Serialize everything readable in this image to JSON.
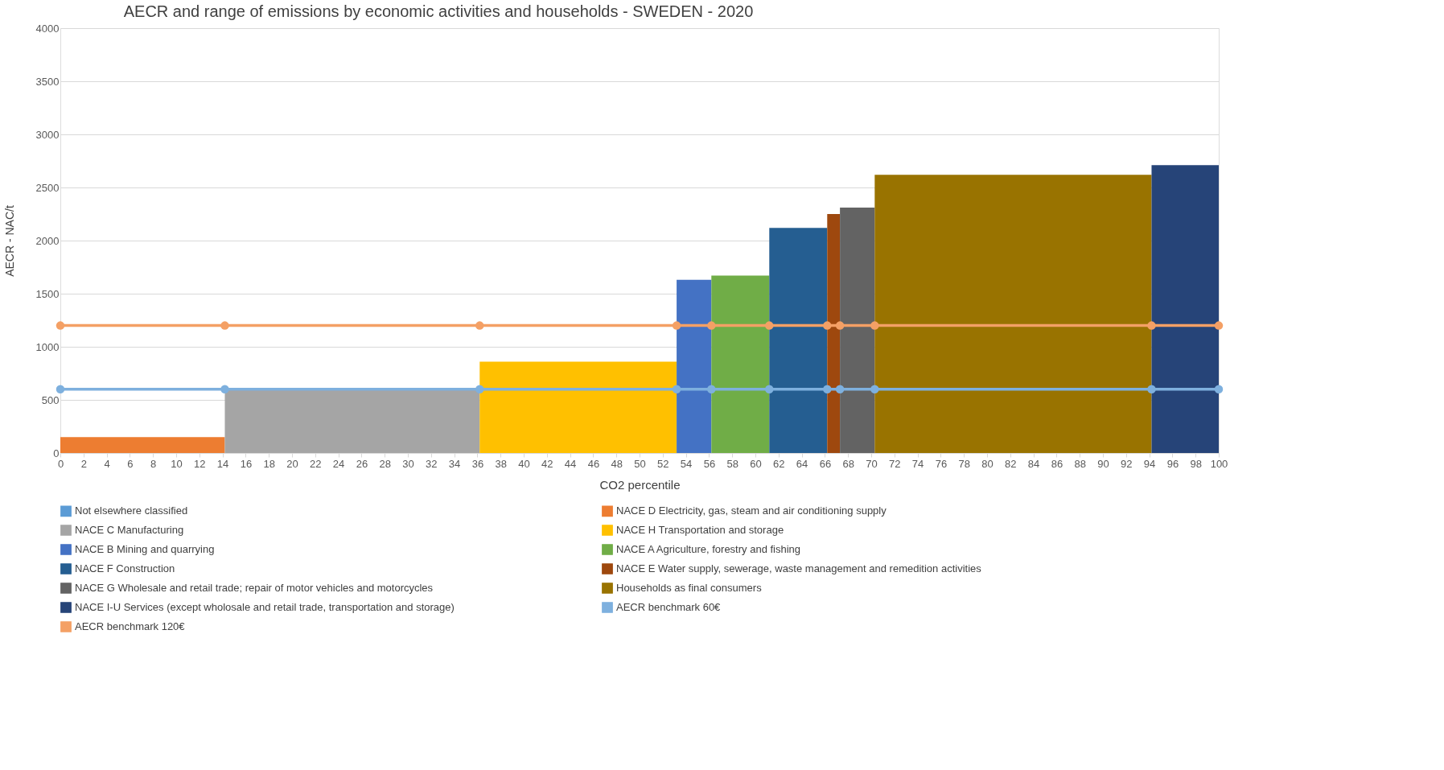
{
  "chart_data": {
    "type": "area",
    "title": "AECR and range of emissions by economic activities and households -   SWEDEN - 2020",
    "xlabel": "CO2 percentile",
    "ylabel": "AECR - NAC/t",
    "xlim": [
      0,
      100
    ],
    "xticks": [
      0,
      2,
      4,
      6,
      8,
      10,
      12,
      14,
      16,
      18,
      20,
      22,
      24,
      26,
      28,
      30,
      32,
      34,
      36,
      38,
      40,
      42,
      44,
      46,
      48,
      50,
      52,
      54,
      56,
      58,
      60,
      62,
      64,
      66,
      68,
      70,
      72,
      74,
      76,
      78,
      80,
      82,
      84,
      86,
      88,
      90,
      92,
      94,
      96,
      98,
      100
    ],
    "ylim": [
      0,
      4000
    ],
    "yticks": [
      0,
      500,
      1000,
      1500,
      2000,
      2500,
      3000,
      3500,
      4000
    ],
    "line_style": "solid",
    "grid": "y",
    "legend": "bottom",
    "series": [
      {
        "name": "Not elsewhere classified",
        "color": "#5b9bd5"
      },
      {
        "name": "NACE D Electricity, gas, steam and air conditioning supply",
        "color": "#ed7d31",
        "x": [
          0,
          14.2
        ],
        "values": [
          150,
          150
        ]
      },
      {
        "name": "NACE C Manufacturing",
        "color": "#a5a5a5",
        "x": [
          14.2,
          36.2
        ],
        "values": [
          590,
          590
        ]
      },
      {
        "name": "NACE H Transportation and storage",
        "color": "#ffc000",
        "x": [
          36.2,
          53.2
        ],
        "values": [
          860,
          860
        ]
      },
      {
        "name": "NACE B Mining and quarrying",
        "color": "#4472c4",
        "x": [
          53.2,
          56.2
        ],
        "values": [
          1630,
          1630
        ]
      },
      {
        "name": "NACE A Agriculture, forestry and fishing",
        "color": "#70ad47",
        "x": [
          56.2,
          61.2
        ],
        "values": [
          1670,
          1670
        ]
      },
      {
        "name": "NACE F Construction",
        "color": "#255e91",
        "x": [
          61.2,
          66.2
        ],
        "values": [
          2120,
          2120
        ]
      },
      {
        "name": "NACE E Water supply, sewerage, waste management and remedition activities",
        "color": "#9e480e",
        "x": [
          66.2,
          67.3
        ],
        "values": [
          2250,
          2250
        ]
      },
      {
        "name": "NACE G Wholesale and retail trade; repair of motor vehicles and motorcycles",
        "color": "#636363",
        "x": [
          67.3,
          70.3
        ],
        "values": [
          2310,
          2310
        ]
      },
      {
        "name": "Households as final consumers",
        "color": "#997300",
        "x": [
          70.3,
          94.2
        ],
        "values": [
          2620,
          2620
        ]
      },
      {
        "name": "NACE I-U Services (except wholosale and retail trade, transportation and storage)",
        "color": "#264478",
        "x": [
          94.2,
          100
        ],
        "values": [
          2710,
          2710
        ]
      },
      {
        "name": "AECR benchmark 60€",
        "color": "#7eb0de",
        "type": "line",
        "marker": "circle",
        "x": [
          0,
          14.2,
          36.2,
          53.2,
          56.2,
          61.2,
          66.2,
          67.3,
          70.3,
          94.2,
          100
        ],
        "values": [
          600,
          600,
          600,
          600,
          600,
          600,
          600,
          600,
          600,
          600,
          600
        ]
      },
      {
        "name": "AECR benchmark 120€",
        "color": "#f4a065",
        "type": "line",
        "marker": "circle",
        "x": [
          0,
          14.2,
          36.2,
          53.2,
          56.2,
          61.2,
          66.2,
          67.3,
          70.3,
          94.2,
          100
        ],
        "values": [
          1200,
          1200,
          1200,
          1200,
          1200,
          1200,
          1200,
          1200,
          1200,
          1200,
          1200
        ]
      }
    ]
  }
}
